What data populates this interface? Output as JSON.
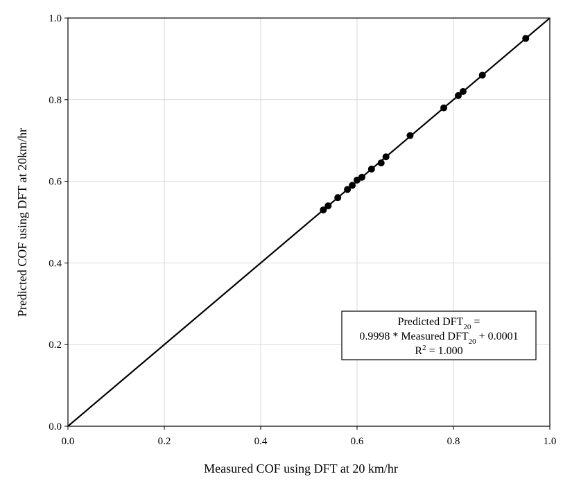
{
  "chart_data": {
    "type": "scatter",
    "xlabel": "Measured COF using DFT at 20 km/hr",
    "ylabel": "Predicted COF using DFT at 20km/hr",
    "xlim": [
      0.0,
      1.0
    ],
    "ylim": [
      0.0,
      1.0
    ],
    "grid": true,
    "x_ticks": [
      "0.0",
      "0.2",
      "0.4",
      "0.6",
      "0.8",
      "1.0"
    ],
    "y_ticks": [
      "0.0",
      "0.2",
      "0.4",
      "0.6",
      "0.8",
      "1.0"
    ],
    "series": [
      {
        "points": [
          {
            "x": 0.53,
            "y": 0.53
          },
          {
            "x": 0.54,
            "y": 0.54
          },
          {
            "x": 0.56,
            "y": 0.56
          },
          {
            "x": 0.58,
            "y": 0.58
          },
          {
            "x": 0.59,
            "y": 0.59
          },
          {
            "x": 0.6,
            "y": 0.603
          },
          {
            "x": 0.61,
            "y": 0.61
          },
          {
            "x": 0.63,
            "y": 0.63
          },
          {
            "x": 0.65,
            "y": 0.645
          },
          {
            "x": 0.66,
            "y": 0.66
          },
          {
            "x": 0.71,
            "y": 0.712
          },
          {
            "x": 0.78,
            "y": 0.78
          },
          {
            "x": 0.81,
            "y": 0.81
          },
          {
            "x": 0.82,
            "y": 0.82
          },
          {
            "x": 0.86,
            "y": 0.86
          },
          {
            "x": 0.95,
            "y": 0.95
          }
        ],
        "marker_color": "#000000"
      }
    ],
    "fit_line": {
      "slope": 0.9998,
      "intercept": 0.0001,
      "x_range": [
        0.0,
        1.0
      ],
      "color": "#000000"
    },
    "annotation": {
      "line1_main": "Predicted DFT",
      "line1_sub": "20",
      "line1_end": " =",
      "line2_main": "0.9998 * Measured DFT",
      "line2_sub": "20",
      "line2_end": " + 0.0001",
      "line3_main": "R",
      "line3_sup": "2",
      "line3_end": " = 1.000"
    },
    "colors": {
      "grid": "#d9d9d9",
      "frame": "#000000",
      "marker": "#000000"
    }
  }
}
